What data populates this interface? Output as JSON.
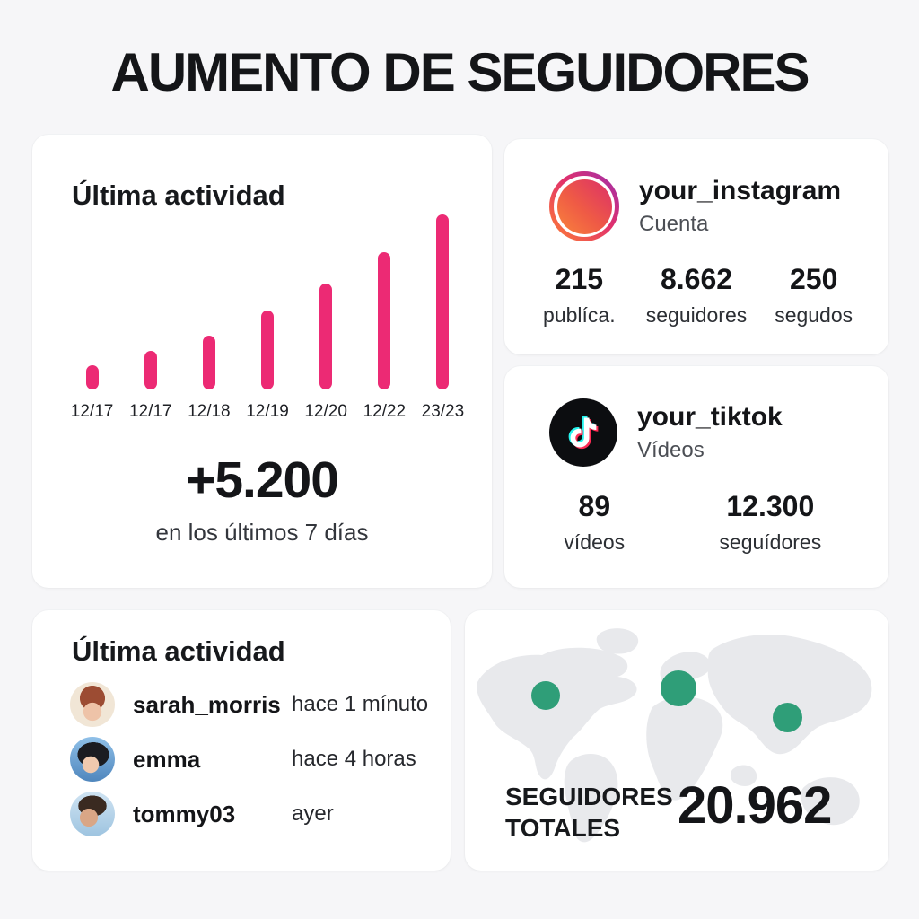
{
  "page": {
    "title": "AUMENTO DE SEGUIDORES"
  },
  "colors": {
    "accent_pink": "#EC2A74",
    "accent_green": "#2F9E78",
    "card_bg": "#ffffff",
    "page_bg": "#f6f6f8",
    "tiktok_cyan": "#25F4EE",
    "tiktok_red": "#FE2C55",
    "instagram_gradient": [
      "#9b2fae",
      "#e1306c",
      "#fc7a38"
    ]
  },
  "chart_card": {
    "heading": "Última actividad",
    "highlight_value": "+5.200",
    "highlight_caption": "en los últimos 7 días"
  },
  "chart_data": {
    "type": "bar",
    "title": "Última actividad",
    "categories": [
      "12/17",
      "12/17",
      "12/18",
      "12/19",
      "12/20",
      "12/22",
      "23/23"
    ],
    "values": [
      27,
      43,
      60,
      88,
      118,
      153,
      195
    ],
    "xlabel": "",
    "ylabel": "",
    "ylim": [
      0,
      200
    ],
    "grid": false,
    "legend": false,
    "bar_color": "#EC2A74",
    "note": "no y-axis shown; values are relative bar heights in px"
  },
  "instagram_card": {
    "icon": "instagram-logo-icon",
    "username": "your_instagram",
    "subtitle": "Cuenta",
    "stats": [
      {
        "value": "215",
        "label": "publíca."
      },
      {
        "value": "8.662",
        "label": "seguidores"
      },
      {
        "value": "250",
        "label": "segudos"
      }
    ]
  },
  "tiktok_card": {
    "icon": "tiktok-logo-icon",
    "username": "your_tiktok",
    "subtitle": "Vídeos",
    "stats": [
      {
        "value": "89",
        "label": "vídeos"
      },
      {
        "value": "12.300",
        "label": "seguídores"
      }
    ]
  },
  "activity_card": {
    "heading": "Última actividad",
    "items": [
      {
        "username": "sarah_morris",
        "time": "hace 1 mínuto"
      },
      {
        "username": "emma",
        "time": "hace 4 horas"
      },
      {
        "username": "tommy03",
        "time": "ayer"
      }
    ]
  },
  "map_card": {
    "label_line1": "SEGUIDORES",
    "label_line2": "TOTALES",
    "total": "20.962",
    "markers": 3
  }
}
